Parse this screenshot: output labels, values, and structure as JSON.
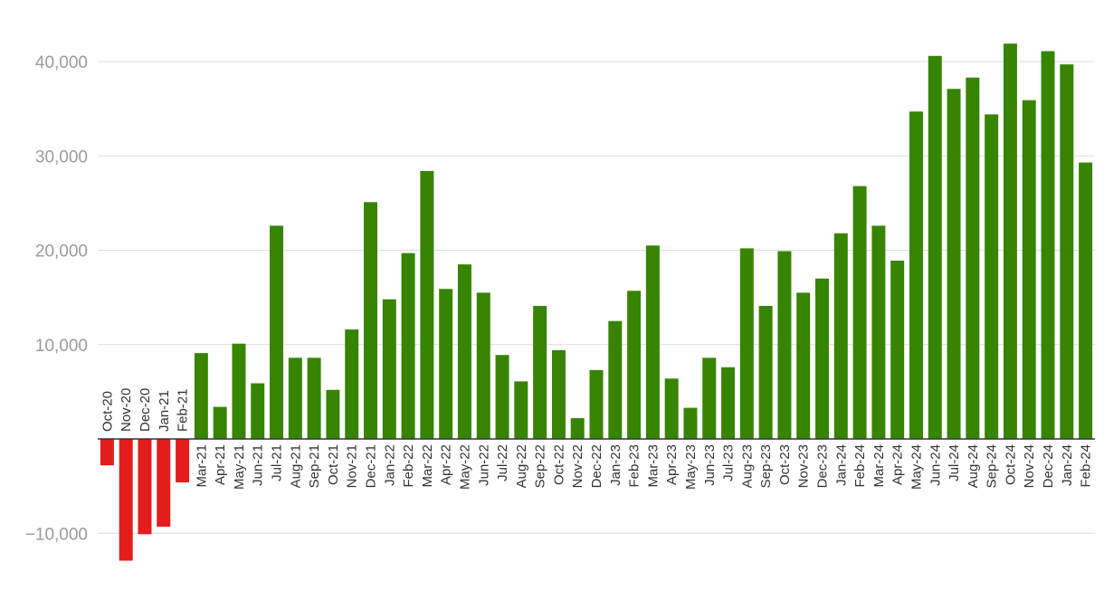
{
  "chart_data": {
    "type": "bar",
    "title": "",
    "xlabel": "",
    "ylabel": "",
    "ylim": [
      -13000,
      43000
    ],
    "yticks": [
      -10000,
      10000,
      20000,
      30000,
      40000
    ],
    "ytick_labels": [
      "−10,000",
      "10,000",
      "20,000",
      "30,000",
      "40,000"
    ],
    "grid": true,
    "legend": "none",
    "colors": {
      "positive": "#368400",
      "negative": "#e31c1c",
      "axis": "#333333",
      "grid": "#dcdcdc",
      "tick_text": "#9a9a9a"
    },
    "categories": [
      "Oct-20",
      "Nov-20",
      "Dec-20",
      "Jan-21",
      "Feb-21",
      "Mar-21",
      "Apr-21",
      "May-21",
      "Jun-21",
      "Jul-21",
      "Aug-21",
      "Sep-21",
      "Oct-21",
      "Nov-21",
      "Dec-21",
      "Jan-22",
      "Feb-22",
      "Mar-22",
      "Apr-22",
      "May-22",
      "Jun-22",
      "Jul-22",
      "Aug-22",
      "Sep-22",
      "Oct-22",
      "Nov-22",
      "Dec-22",
      "Jan-23",
      "Feb-23",
      "Mar-23",
      "Apr-23",
      "May-23",
      "Jun-23",
      "Jul-23",
      "Aug-23",
      "Sep-23",
      "Oct-23",
      "Nov-23",
      "Dec-23",
      "Jan-24",
      "Feb-24",
      "Mar-24",
      "Apr-24",
      "May-24",
      "Jun-24",
      "Jul-24",
      "Aug-24",
      "Sep-24",
      "Oct-24",
      "Nov-24",
      "Dec-24",
      "Jan-24",
      "Feb-24"
    ],
    "values": [
      -2800,
      -12900,
      -10100,
      -9300,
      -4600,
      9100,
      3400,
      10100,
      5900,
      22600,
      8600,
      8600,
      5200,
      11600,
      25100,
      14800,
      19700,
      28400,
      15900,
      18500,
      15500,
      8900,
      6100,
      14100,
      9400,
      2200,
      7300,
      12500,
      15700,
      20500,
      6400,
      3300,
      8600,
      7600,
      20200,
      14100,
      19900,
      15500,
      17000,
      21800,
      26800,
      22600,
      18900,
      34700,
      40600,
      37100,
      38300,
      34400,
      41900,
      35900,
      41100,
      39700,
      29300
    ]
  }
}
